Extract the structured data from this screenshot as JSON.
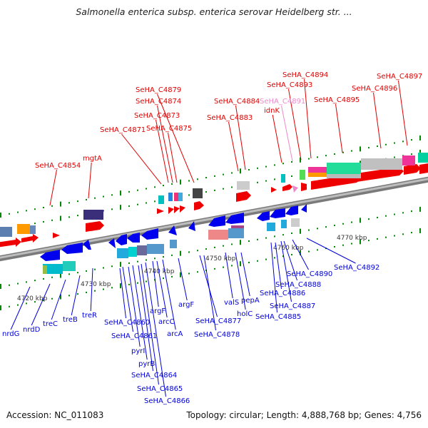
{
  "title": "Salmonella enterica subsp. enterica serovar Heidelberg str. ...",
  "footer": {
    "accession": "Accession: NC_011083",
    "summary": "Topology: circular; Length: 4,888,768 bp; Genes: 4,756"
  },
  "colors": {
    "forward": "#e00000",
    "reverse": "#0000dd",
    "pseudo": "#ee88cc",
    "backbone": "#999999"
  },
  "scale": {
    "ticks": [
      {
        "kbp": 4720,
        "label": "4720 kbp"
      },
      {
        "kbp": 4730,
        "label": "4730 kbp"
      },
      {
        "kbp": 4740,
        "label": "4740 kbp"
      },
      {
        "kbp": 4750,
        "label": "4750 kbp"
      },
      {
        "kbp": 4760,
        "label": "4760 kbp"
      },
      {
        "kbp": 4770,
        "label": "4770 kbp"
      }
    ]
  },
  "forward_labels": [
    {
      "text": "SeHA_C4854",
      "kind": "gene"
    },
    {
      "text": "mgtA",
      "kind": "gene"
    },
    {
      "text": "SeHA_C4871",
      "kind": "gene"
    },
    {
      "text": "SeHA_C4873",
      "kind": "gene"
    },
    {
      "text": "SeHA_C4874",
      "kind": "gene"
    },
    {
      "text": "SeHA_C4875",
      "kind": "gene"
    },
    {
      "text": "SeHA_C4879",
      "kind": "gene"
    },
    {
      "text": "SeHA_C4883",
      "kind": "gene"
    },
    {
      "text": "SeHA_C4884",
      "kind": "gene"
    },
    {
      "text": "idnK",
      "kind": "gene"
    },
    {
      "text": "SeHA_C4891",
      "kind": "pseudo"
    },
    {
      "text": "SeHA_C4893",
      "kind": "gene"
    },
    {
      "text": "SeHA_C4894",
      "kind": "gene"
    },
    {
      "text": "SeHA_C4895",
      "kind": "gene"
    },
    {
      "text": "SeHA_C4896",
      "kind": "gene"
    },
    {
      "text": "SeHA_C4897",
      "kind": "gene"
    }
  ],
  "reverse_labels": [
    {
      "text": "nrdG"
    },
    {
      "text": "nrdD"
    },
    {
      "text": "treC"
    },
    {
      "text": "treB"
    },
    {
      "text": "treR"
    },
    {
      "text": "SeHA_C4860"
    },
    {
      "text": "SeHA_C4861"
    },
    {
      "text": "pyrI"
    },
    {
      "text": "pyrB"
    },
    {
      "text": "SeHA_C4864"
    },
    {
      "text": "SeHA_C4865"
    },
    {
      "text": "SeHA_C4866"
    },
    {
      "text": "argF"
    },
    {
      "text": "arcC"
    },
    {
      "text": "arcA"
    },
    {
      "text": "argF"
    },
    {
      "text": "SeHA_C4877"
    },
    {
      "text": "SeHA_C4878"
    },
    {
      "text": "valS"
    },
    {
      "text": "holC"
    },
    {
      "text": "pepA"
    },
    {
      "text": "SeHA_C4885"
    },
    {
      "text": "SeHA_C4886"
    },
    {
      "text": "SeHA_C4887"
    },
    {
      "text": "SeHA_C4888"
    },
    {
      "text": "SeHA_C4890"
    },
    {
      "text": "SeHA_C4892"
    }
  ]
}
